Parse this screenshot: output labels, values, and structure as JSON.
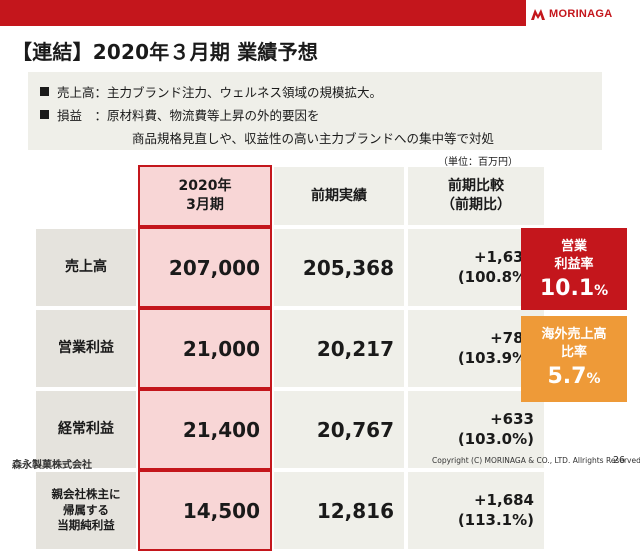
{
  "brand": {
    "name": "MORINAGA",
    "color": "#c4161c"
  },
  "title": "【連結】2020年３月期 業績予想",
  "summary": {
    "line1": "売上高：主力ブランド注力、ウェルネス領域の規模拡大。",
    "line2": "損益　：原材料費、物流費等上昇の外的要因を",
    "line3": "商品規格見直しや、収益性の高い主力ブランドへの集中等で対処"
  },
  "unit": "（単位：百万円）",
  "table": {
    "headers": {
      "forecast": [
        "2020年",
        "3月期"
      ],
      "prior": "前期実績",
      "compare": [
        "前期比較",
        "（前期比）"
      ]
    },
    "rows": [
      {
        "label": [
          "売上高"
        ],
        "forecast": "207,000",
        "prior": "205,368",
        "diff": "+1,632",
        "ratio": "(100.8%)"
      },
      {
        "label": [
          "営業利益"
        ],
        "forecast": "21,000",
        "prior": "20,217",
        "diff": "+783",
        "ratio": "(103.9%)"
      },
      {
        "label": [
          "経常利益"
        ],
        "forecast": "21,400",
        "prior": "20,767",
        "diff": "+633",
        "ratio": "(103.0%)"
      },
      {
        "label": [
          "親会社株主に",
          "帰属する",
          "当期純利益"
        ],
        "forecast": "14,500",
        "prior": "12,816",
        "diff": "+1,684",
        "ratio": "(113.1%)"
      }
    ]
  },
  "kpis": [
    {
      "label": [
        "営業",
        "利益率"
      ],
      "value": "10.1",
      "unit": "%",
      "color": "#c4161c"
    },
    {
      "label": [
        "海外売上高",
        "比率"
      ],
      "value": "5.7",
      "unit": "%",
      "color": "#ee9a38"
    }
  ],
  "footer": {
    "company": "森永製菓株式会社",
    "copyright": "Copyright (C) MORINAGA & CO., LTD. Allrights Reserved.",
    "page": "26"
  }
}
